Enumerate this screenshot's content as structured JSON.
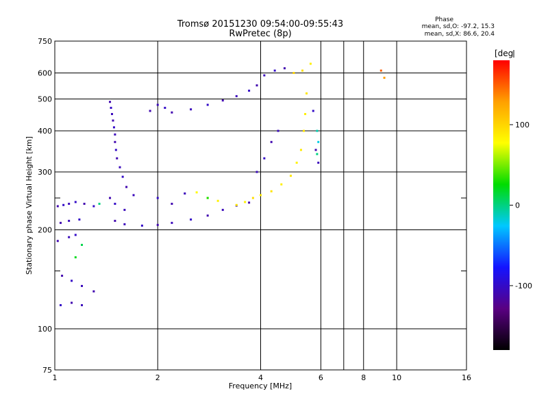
{
  "chart_data": {
    "type": "scatter",
    "title": "Tromsø 20151230 09:54:00-09:55:43",
    "subtitle": "RwPretec (8p)",
    "xlabel": "Frequency [MHz]",
    "ylabel": "Stationary phase Virtual Height [km]",
    "x_scale": "log",
    "y_scale": "log",
    "xlim": [
      1,
      16
    ],
    "ylim": [
      75,
      750
    ],
    "x_ticks": [
      1,
      2,
      4,
      6,
      8,
      10,
      16
    ],
    "x_tick_labels": [
      "1",
      "2",
      "4",
      "6",
      "8",
      "10",
      "16"
    ],
    "x_minor_gridlines": [
      7
    ],
    "y_ticks": [
      75,
      100,
      200,
      300,
      400,
      500,
      600,
      750
    ],
    "y_tick_labels": [
      "75",
      "100",
      "200",
      "300",
      "400",
      "500",
      "600",
      "750"
    ],
    "y_minor_gridlines": [
      150,
      250
    ],
    "grid": true,
    "phase_stats": {
      "heading": "Phase",
      "line_o": "mean, sd,O: -97.2, 15.3",
      "line_x": "mean, sd,X:  86.6, 20.4"
    },
    "colorbar": {
      "unit_label": "[deg",
      "range": [
        -180,
        180
      ],
      "ticks": [
        100,
        0,
        -100
      ],
      "tick_labels": [
        "100",
        "0",
        "-100"
      ],
      "color_stops": [
        "#000000",
        "#5a0082",
        "#1414ff",
        "#00c8ff",
        "#00dc00",
        "#ffff00",
        "#ffa000",
        "#ff0000"
      ]
    },
    "series": [
      {
        "points": [
          [
            1.02,
            236,
            -110
          ],
          [
            1.06,
            238,
            -100
          ],
          [
            1.1,
            240,
            -105
          ],
          [
            1.15,
            243,
            -100
          ],
          [
            1.22,
            240,
            -110
          ],
          [
            1.3,
            236,
            -100
          ],
          [
            1.04,
            210,
            -110
          ],
          [
            1.1,
            213,
            -105
          ],
          [
            1.18,
            215,
            -100
          ],
          [
            1.02,
            185,
            -110
          ],
          [
            1.1,
            190,
            -105
          ],
          [
            1.15,
            193,
            -100
          ],
          [
            1.05,
            145,
            -110
          ],
          [
            1.12,
            140,
            -100
          ],
          [
            1.2,
            135,
            -105
          ],
          [
            1.3,
            130,
            -110
          ],
          [
            1.04,
            118,
            -100
          ],
          [
            1.12,
            120,
            -110
          ],
          [
            1.2,
            118,
            -105
          ],
          [
            1.45,
            490,
            -110
          ],
          [
            1.46,
            470,
            -100
          ],
          [
            1.47,
            450,
            -105
          ],
          [
            1.48,
            430,
            -110
          ],
          [
            1.49,
            410,
            -100
          ],
          [
            1.5,
            390,
            -105
          ],
          [
            1.5,
            370,
            -110
          ],
          [
            1.51,
            350,
            -100
          ],
          [
            1.52,
            330,
            -110
          ],
          [
            1.55,
            310,
            -105
          ],
          [
            1.58,
            290,
            -100
          ],
          [
            1.62,
            270,
            -110
          ],
          [
            1.7,
            255,
            -105
          ],
          [
            1.45,
            250,
            -110
          ],
          [
            1.5,
            240,
            -100
          ],
          [
            1.6,
            230,
            -105
          ],
          [
            1.5,
            213,
            -110
          ],
          [
            1.6,
            208,
            -105
          ],
          [
            1.8,
            206,
            -100
          ],
          [
            2.0,
            207,
            -110
          ],
          [
            2.2,
            210,
            -105
          ],
          [
            2.5,
            215,
            -100
          ],
          [
            2.8,
            221,
            -110
          ],
          [
            3.1,
            230,
            -105
          ],
          [
            3.4,
            237,
            -100
          ],
          [
            3.7,
            242,
            -110
          ],
          [
            1.9,
            460,
            -110
          ],
          [
            2.0,
            480,
            -105
          ],
          [
            2.1,
            470,
            -100
          ],
          [
            2.2,
            455,
            -110
          ],
          [
            2.5,
            465,
            -105
          ],
          [
            2.8,
            480,
            -100
          ],
          [
            3.1,
            495,
            -110
          ],
          [
            3.4,
            510,
            -105
          ],
          [
            3.7,
            530,
            -100
          ],
          [
            3.9,
            550,
            -110
          ],
          [
            4.1,
            590,
            -105
          ],
          [
            4.4,
            610,
            -100
          ],
          [
            4.7,
            620,
            -110
          ],
          [
            3.9,
            300,
            -105
          ],
          [
            4.1,
            330,
            -100
          ],
          [
            4.3,
            370,
            -110
          ],
          [
            4.5,
            400,
            -105
          ],
          [
            5.7,
            460,
            -100
          ],
          [
            5.8,
            350,
            -110
          ],
          [
            5.9,
            320,
            -105
          ],
          [
            2.0,
            250,
            -100
          ],
          [
            2.2,
            240,
            -110
          ],
          [
            2.4,
            258,
            -105
          ]
        ]
      },
      {
        "points": [
          [
            3.4,
            238,
            90
          ],
          [
            3.6,
            243,
            85
          ],
          [
            3.8,
            250,
            95
          ],
          [
            4.0,
            255,
            88
          ],
          [
            4.3,
            262,
            92
          ],
          [
            4.6,
            275,
            86
          ],
          [
            4.9,
            292,
            90
          ],
          [
            5.1,
            320,
            84
          ],
          [
            5.25,
            350,
            88
          ],
          [
            5.35,
            400,
            92
          ],
          [
            5.4,
            450,
            86
          ],
          [
            5.45,
            520,
            90
          ],
          [
            5.6,
            640,
            85
          ],
          [
            2.6,
            260,
            80
          ],
          [
            2.8,
            250,
            82
          ],
          [
            3.0,
            245,
            84
          ],
          [
            5.0,
            600,
            100
          ],
          [
            5.3,
            610,
            95
          ],
          [
            9.0,
            610,
            150
          ],
          [
            9.2,
            580,
            130
          ]
        ]
      },
      {
        "points": [
          [
            5.85,
            400,
            -10
          ],
          [
            5.9,
            370,
            -20
          ],
          [
            5.85,
            340,
            0
          ],
          [
            2.8,
            250,
            30
          ],
          [
            1.15,
            165,
            20
          ],
          [
            1.2,
            180,
            10
          ],
          [
            1.35,
            240,
            0
          ]
        ]
      }
    ]
  }
}
